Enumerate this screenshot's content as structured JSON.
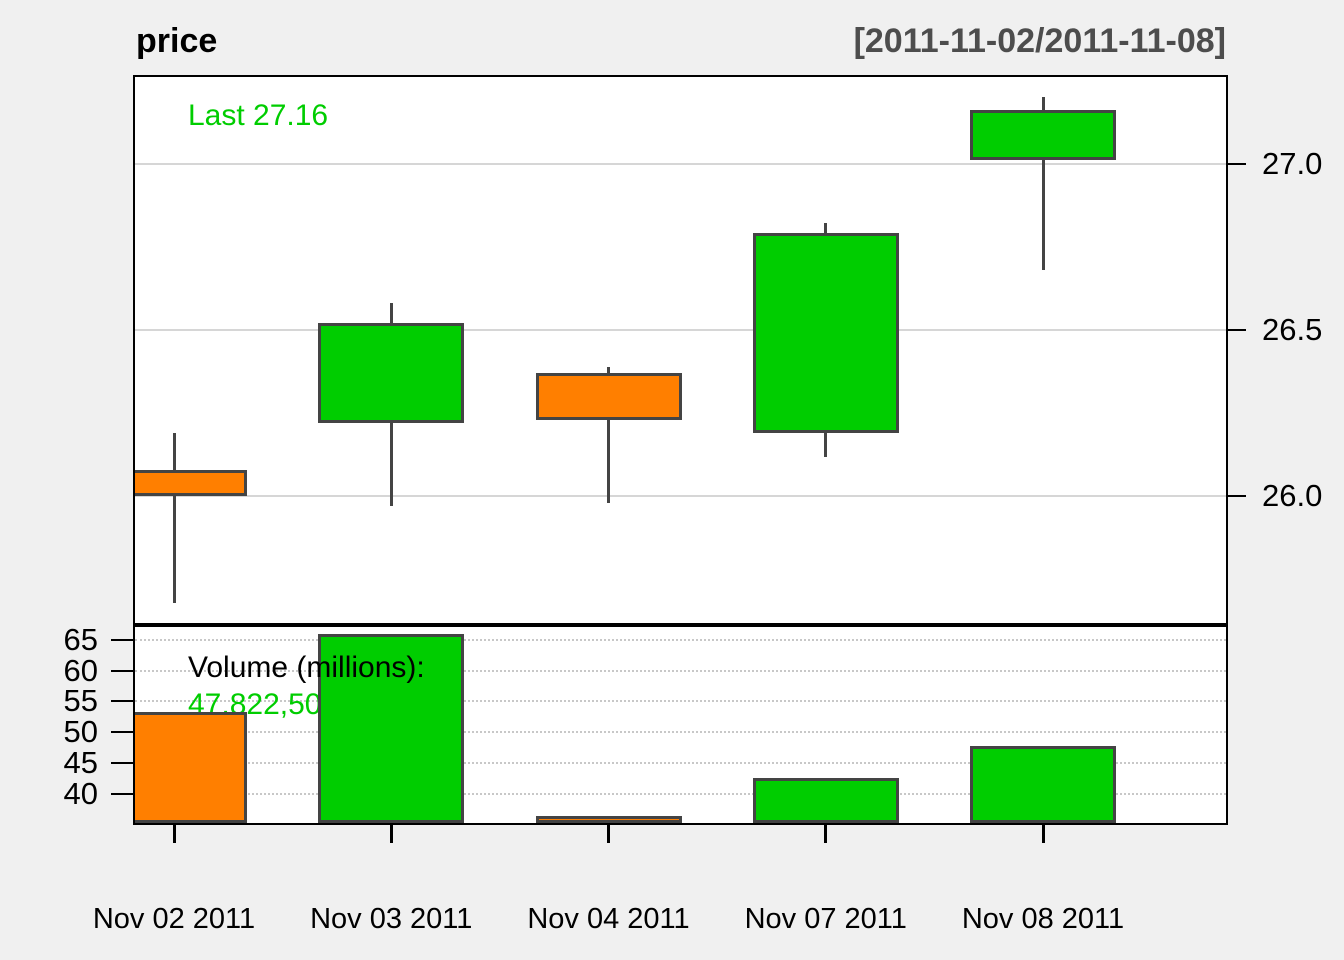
{
  "header": {
    "title": "price",
    "range_label": "[2011-11-02/2011-11-08]"
  },
  "colors": {
    "up": "#00CD00",
    "down": "#FF7F00",
    "candle_outline": "#444444",
    "grid_solid": "#D6D6D6",
    "grid_dotted": "#C8C8C8",
    "panel_background": "#FFFFFF",
    "page_background": "#F0F0F0",
    "range_text": "#4D4D4D",
    "last_text": "#00CD00",
    "volume_value_text": "#00CD00"
  },
  "chart_data": {
    "type": "candlestick_with_volume",
    "title": "price",
    "date_range_label": "[2011-11-02/2011-11-08]",
    "x_labels": [
      "Nov 02 2011",
      "Nov 03 2011",
      "Nov 04 2011",
      "Nov 07 2011",
      "Nov 08 2011"
    ],
    "candles": [
      {
        "date": "Nov 02 2011",
        "open": 26.08,
        "high": 26.19,
        "low": 25.68,
        "close": 26.0,
        "volume_millions": 53.3,
        "direction": "down"
      },
      {
        "date": "Nov 03 2011",
        "open": 26.22,
        "high": 26.58,
        "low": 25.97,
        "close": 26.52,
        "volume_millions": 66.0,
        "direction": "up"
      },
      {
        "date": "Nov 04 2011",
        "open": 26.37,
        "high": 26.39,
        "low": 25.98,
        "close": 26.23,
        "volume_millions": 36.3,
        "direction": "down"
      },
      {
        "date": "Nov 07 2011",
        "open": 26.19,
        "high": 26.82,
        "low": 26.12,
        "close": 26.79,
        "volume_millions": 42.5,
        "direction": "up"
      },
      {
        "date": "Nov 08 2011",
        "open": 27.01,
        "high": 27.2,
        "low": 26.68,
        "close": 27.16,
        "volume_millions": 47.8,
        "direction": "up"
      }
    ],
    "price_axis": {
      "side": "right",
      "grid": "solid",
      "ylim": [
        25.62,
        27.26
      ],
      "ticks": [
        {
          "label": "27.0",
          "value": 27.0
        },
        {
          "label": "26.5",
          "value": 26.5
        },
        {
          "label": "26.0",
          "value": 26.0
        }
      ]
    },
    "volume_axis": {
      "side": "left",
      "grid": "dotted",
      "ylim": [
        35.2,
        67.1
      ],
      "ticks": [
        {
          "label": "65",
          "value": 65
        },
        {
          "label": "60",
          "value": 60
        },
        {
          "label": "55",
          "value": 55
        },
        {
          "label": "50",
          "value": 50
        },
        {
          "label": "45",
          "value": 45
        },
        {
          "label": "40",
          "value": 40
        }
      ]
    },
    "annotations": {
      "last_label": "Last 27.16",
      "volume_label": "Volume (millions):",
      "volume_value": "47,822,500"
    }
  }
}
